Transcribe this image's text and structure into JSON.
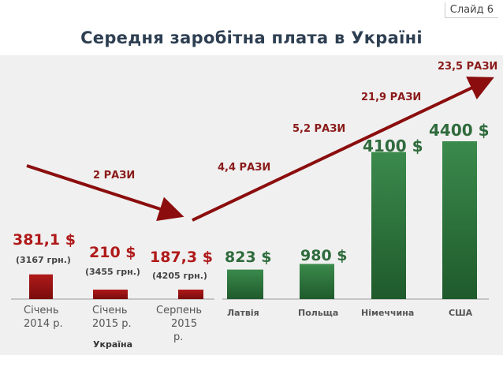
{
  "slide_label": "Слайд 6",
  "title": "Середня заробітна плата в Україні",
  "chart_data": {
    "type": "bar",
    "title": "Середня заробітна плата в Україні",
    "unit": "$",
    "categories": [
      "Січень 2014 р.",
      "Січень 2015 р.",
      "Серпень 2015 р.",
      "Латвія",
      "Польща",
      "Німеччина",
      "США"
    ],
    "category_lines": [
      [
        "Січень",
        "2014 р."
      ],
      [
        "Січень",
        "2015 р."
      ],
      [
        "Серпень",
        "2015",
        "р."
      ],
      [
        "Латвія"
      ],
      [
        "Польща"
      ],
      [
        "Німеччина"
      ],
      [
        "США"
      ]
    ],
    "values": [
      381.1,
      210,
      187.3,
      823,
      980,
      4100,
      4400
    ],
    "value_labels": [
      "381,1 $",
      "210 $",
      "187,3 $",
      "823 $",
      "980 $",
      "4100 $",
      "4400 $"
    ],
    "sub_labels": [
      "(3167 грн.)",
      "(3455 грн.)",
      "(4205 грн.)",
      "",
      "",
      "",
      ""
    ],
    "group_label": "Україна",
    "colors": {
      "ukraine_bar": "#b01a1a",
      "ukraine_bar_dark": "#7a0c0c",
      "foreign_bar": "#3b8a4c",
      "foreign_bar_dark": "#1f5a2c",
      "arrow": "#8b0d0d",
      "label_red": "#b01a1a",
      "label_green": "#2f6b3c",
      "ratio_text": "#8b1a1a"
    },
    "annotations": [
      "2 РАЗИ",
      "4,4 РАЗИ",
      "5,2 РАЗИ",
      "21,9 РАЗИ",
      "23,5 РАЗИ"
    ]
  }
}
